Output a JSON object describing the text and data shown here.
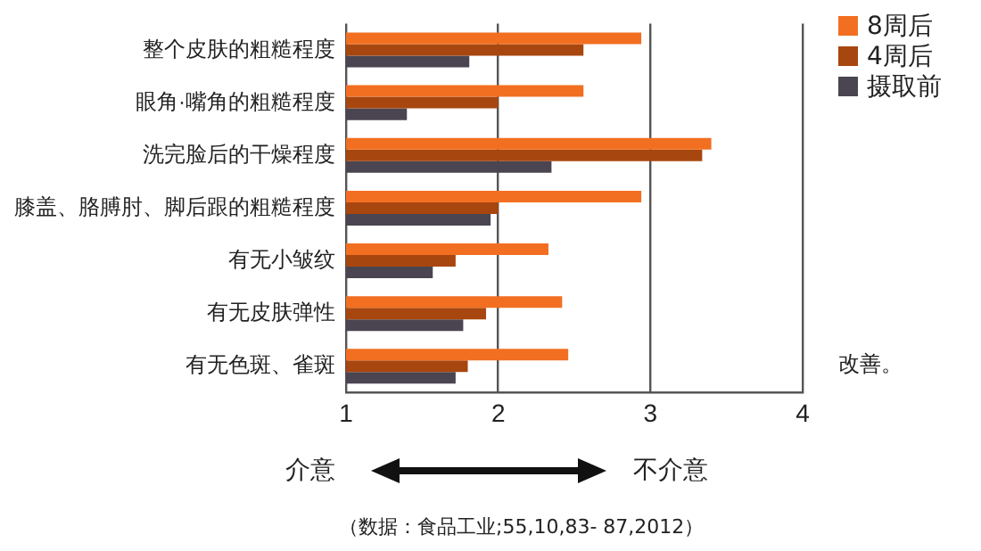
{
  "chart_data": {
    "type": "bar",
    "orientation": "horizontal",
    "categories": [
      "整个皮肤的粗糙程度",
      "眼角·嘴角的粗糙程度",
      "洗完脸后的干燥程度",
      "膝盖、胳膊肘、脚后跟的粗糙程度",
      "有无小皱纹",
      "有无皮肤弹性",
      "有无色斑、雀斑"
    ],
    "series": [
      {
        "name": "8周后",
        "color": "#f26f21",
        "values": [
          2.94,
          2.56,
          3.4,
          2.94,
          2.33,
          2.42,
          2.46
        ]
      },
      {
        "name": "4周后",
        "color": "#a8460f",
        "values": [
          2.56,
          2.0,
          3.34,
          2.0,
          1.72,
          1.92,
          1.8
        ]
      },
      {
        "name": "摄取前",
        "color": "#4a4550",
        "values": [
          1.81,
          1.4,
          2.35,
          1.95,
          1.57,
          1.77,
          1.72
        ]
      }
    ],
    "xlim": [
      1,
      4
    ],
    "xticks": [
      1,
      2,
      3,
      4
    ],
    "grid": "x",
    "legend": "top right",
    "annotations": [
      "介意",
      "不介意",
      "改善。",
      "（数据：食品工业;55,10,83- 87,2012）"
    ]
  }
}
